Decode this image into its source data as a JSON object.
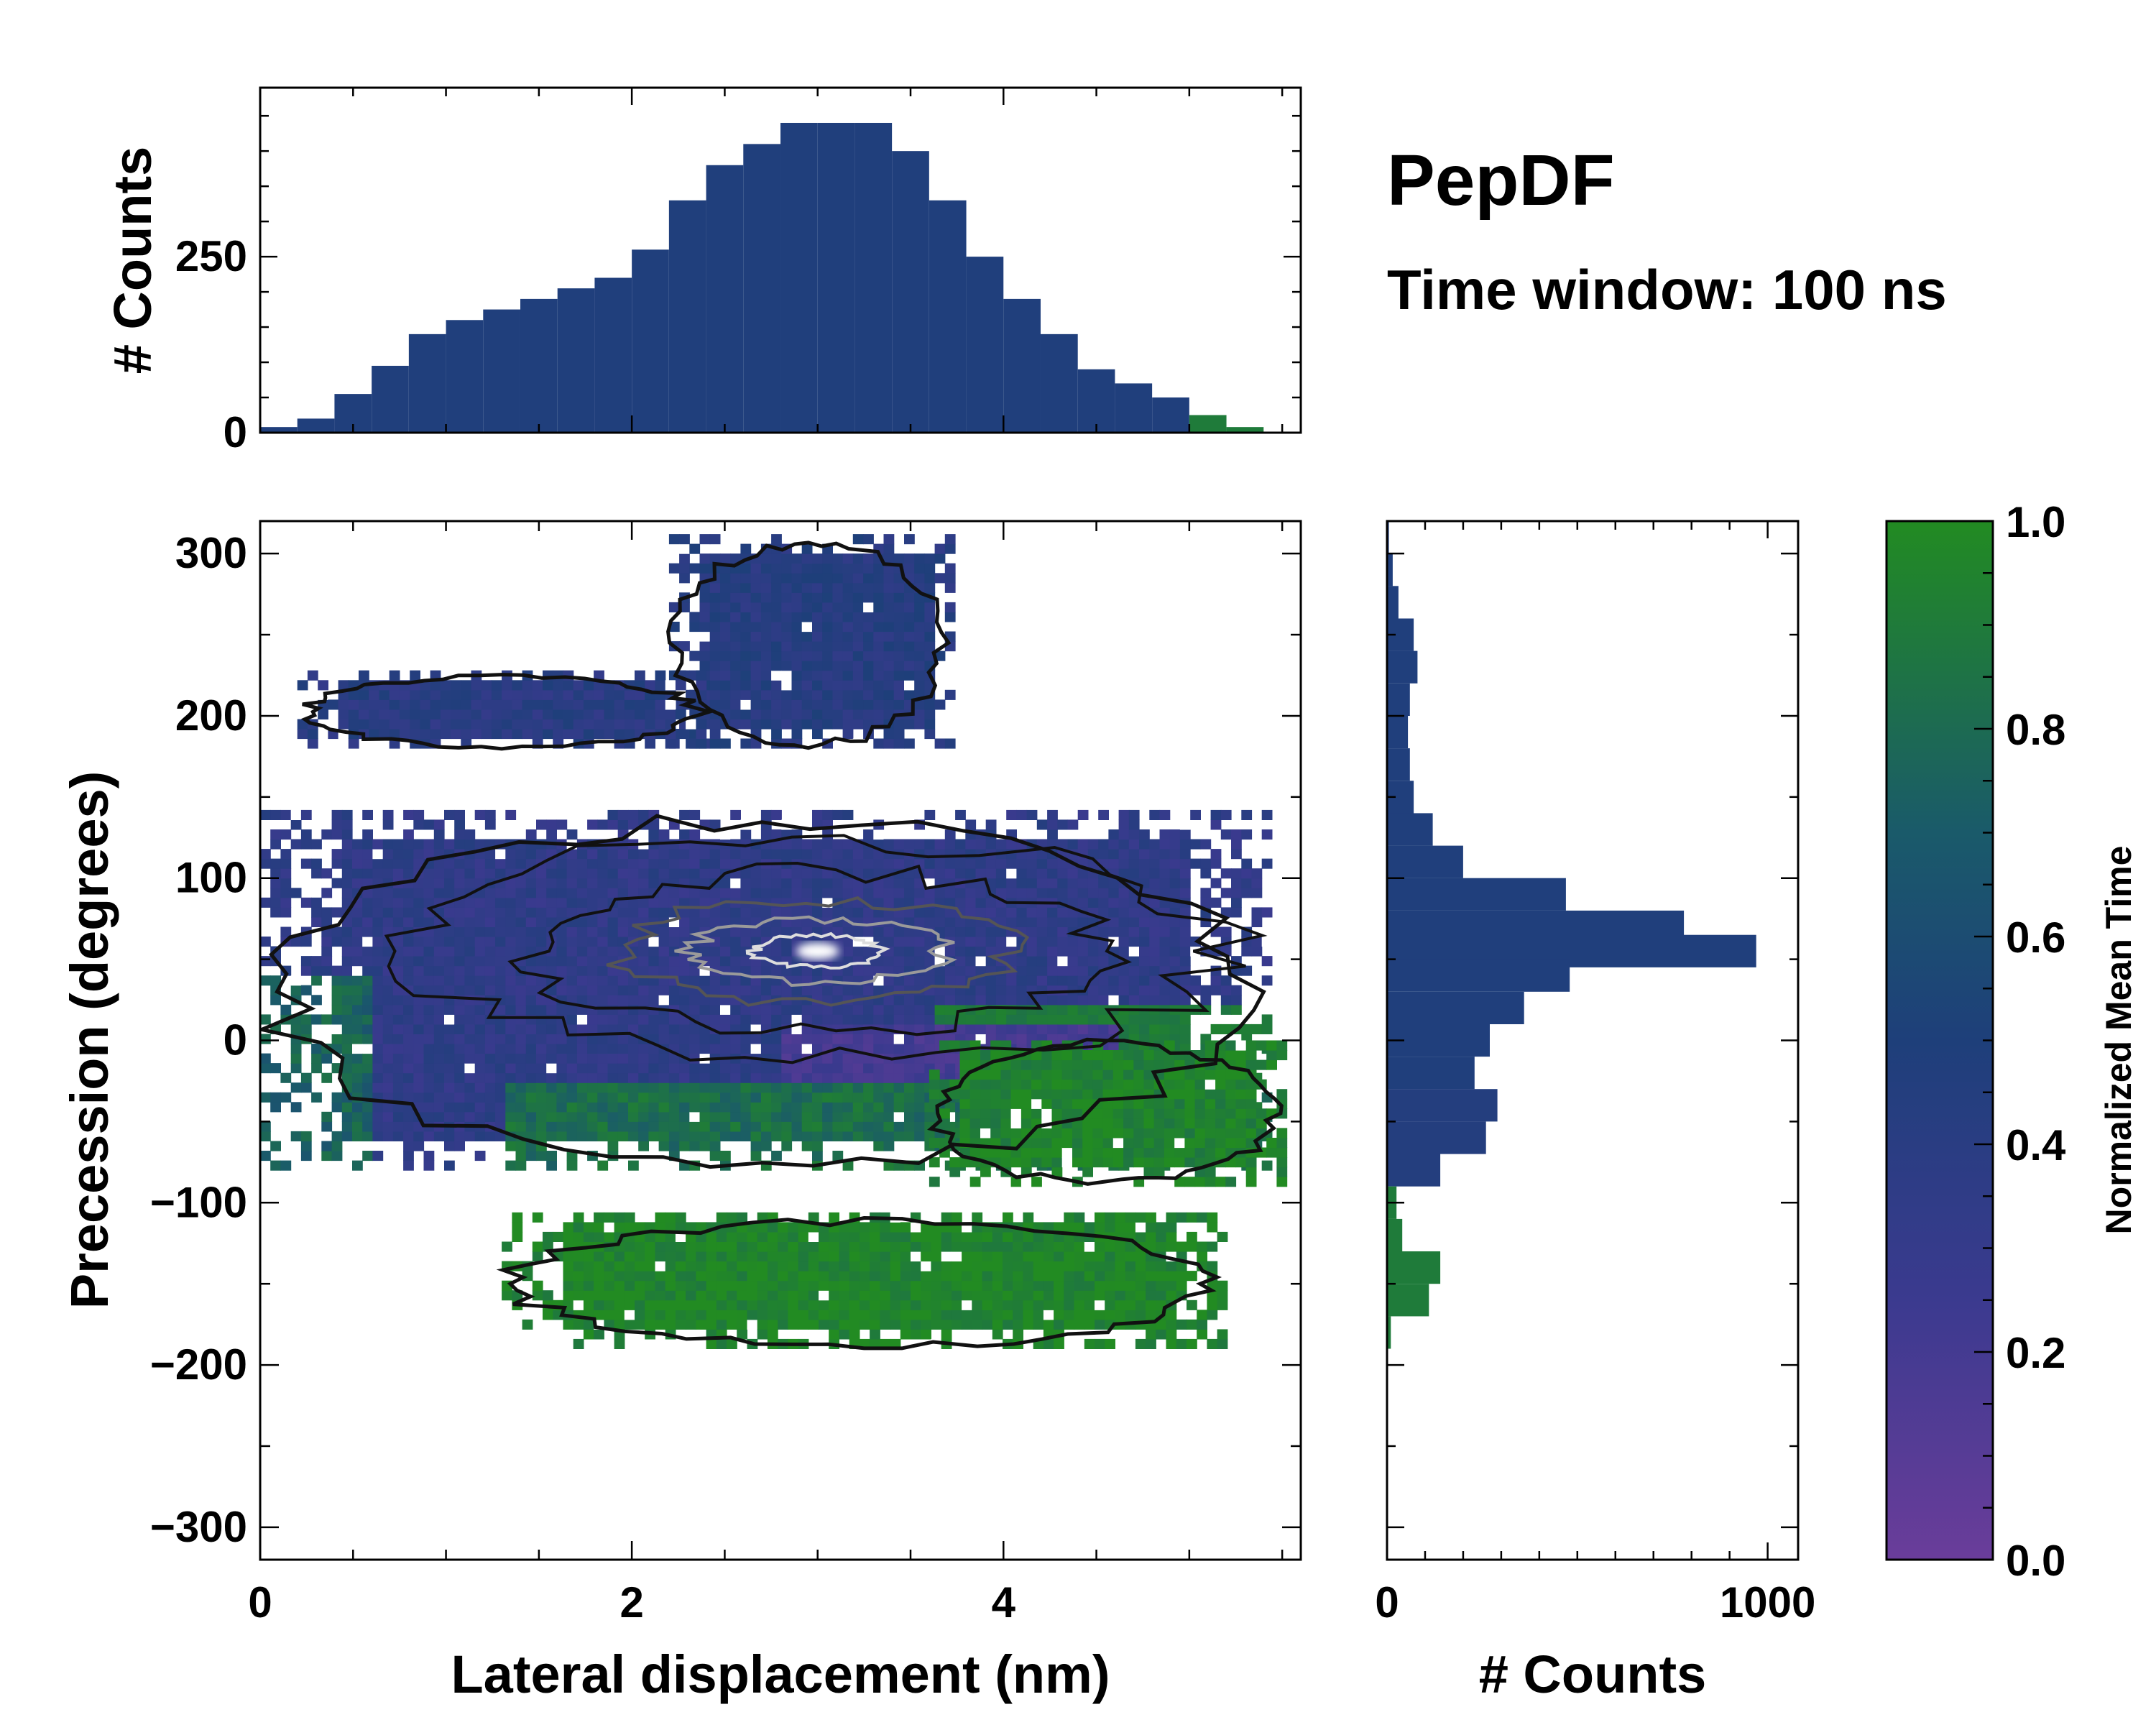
{
  "title": "PepDF",
  "subtitle": "Time window: 100 ns",
  "colors": {
    "low": "#6a3d9a",
    "mid": "#1f3f7a",
    "high": "#228b22",
    "contour_outer": "#111111",
    "contour_inner": "#9a9a9a"
  },
  "chart_data": [
    {
      "id": "main",
      "type": "heatmap",
      "xlabel": "Lateral displacement (nm)",
      "ylabel": "Precession (degrees)",
      "xlim": [
        0,
        5.6
      ],
      "ylim": [
        -320,
        320
      ],
      "xticks": [
        0,
        2,
        4
      ],
      "yticks": [
        -300,
        -200,
        -100,
        0,
        100,
        200,
        300
      ],
      "xtick_labels": [
        "0",
        "2",
        "4"
      ],
      "ytick_labels": [
        "−300",
        "−200",
        "−100",
        "0",
        "100",
        "200",
        "300"
      ],
      "color_metric": "Normalized Mean Time",
      "clusters": [
        {
          "name": "upper band",
          "x_range": [
            2.2,
            3.7
          ],
          "y_range": [
            180,
            310
          ],
          "mean_time": 0.42
        },
        {
          "name": "upper-left arm",
          "x_range": [
            0.2,
            2.4
          ],
          "y_range": [
            180,
            225
          ],
          "mean_time": 0.4
        },
        {
          "name": "central band",
          "x_range": [
            0.0,
            5.4
          ],
          "y_range": [
            -80,
            140
          ],
          "mean_time": 0.35,
          "peak": [
            3.0,
            55
          ]
        },
        {
          "name": "lower-right lobe",
          "x_range": [
            3.6,
            5.5
          ],
          "y_range": [
            -90,
            0
          ],
          "mean_time": 0.95
        },
        {
          "name": "bottom band",
          "x_range": [
            1.3,
            5.2
          ],
          "y_range": [
            -190,
            -110
          ],
          "mean_time": 0.97
        }
      ]
    },
    {
      "id": "top_hist",
      "type": "bar",
      "ylabel": "# Counts",
      "xlim": [
        0,
        5.6
      ],
      "ylim": [
        0,
        490
      ],
      "yticks": [
        0,
        250
      ],
      "ytick_labels": [
        "0",
        "250"
      ],
      "x": [
        0.1,
        0.3,
        0.5,
        0.7,
        0.9,
        1.1,
        1.3,
        1.5,
        1.7,
        1.9,
        2.1,
        2.3,
        2.5,
        2.7,
        2.9,
        3.1,
        3.3,
        3.5,
        3.7,
        3.9,
        4.1,
        4.3,
        4.5,
        4.7,
        4.9,
        5.1,
        5.3
      ],
      "values": [
        8,
        20,
        55,
        95,
        140,
        160,
        175,
        190,
        205,
        220,
        260,
        330,
        380,
        410,
        440,
        440,
        440,
        400,
        330,
        250,
        190,
        140,
        90,
        70,
        50,
        25,
        8
      ]
    },
    {
      "id": "right_hist",
      "type": "bar",
      "orientation": "horizontal",
      "xlabel": "# Counts",
      "xlim": [
        0,
        1080
      ],
      "xticks": [
        0,
        1000
      ],
      "xtick_labels": [
        "0",
        "1000"
      ],
      "y": [
        310,
        290,
        270,
        250,
        230,
        210,
        190,
        170,
        150,
        130,
        110,
        90,
        70,
        55,
        40,
        20,
        0,
        -20,
        -40,
        -60,
        -80,
        -100,
        -120,
        -140,
        -160,
        -180
      ],
      "values": [
        5,
        15,
        30,
        70,
        80,
        60,
        55,
        60,
        70,
        120,
        200,
        470,
        780,
        970,
        480,
        360,
        270,
        230,
        290,
        260,
        140,
        25,
        40,
        140,
        110,
        10
      ]
    },
    {
      "id": "colorbar",
      "type": "colorbar",
      "label": "Normalized Mean Time",
      "range": [
        0,
        1
      ],
      "ticks": [
        0,
        0.2,
        0.4,
        0.6,
        0.8,
        1.0
      ],
      "tick_labels": [
        "0.0",
        "0.2",
        "0.4",
        "0.6",
        "0.8",
        "1.0"
      ]
    }
  ]
}
